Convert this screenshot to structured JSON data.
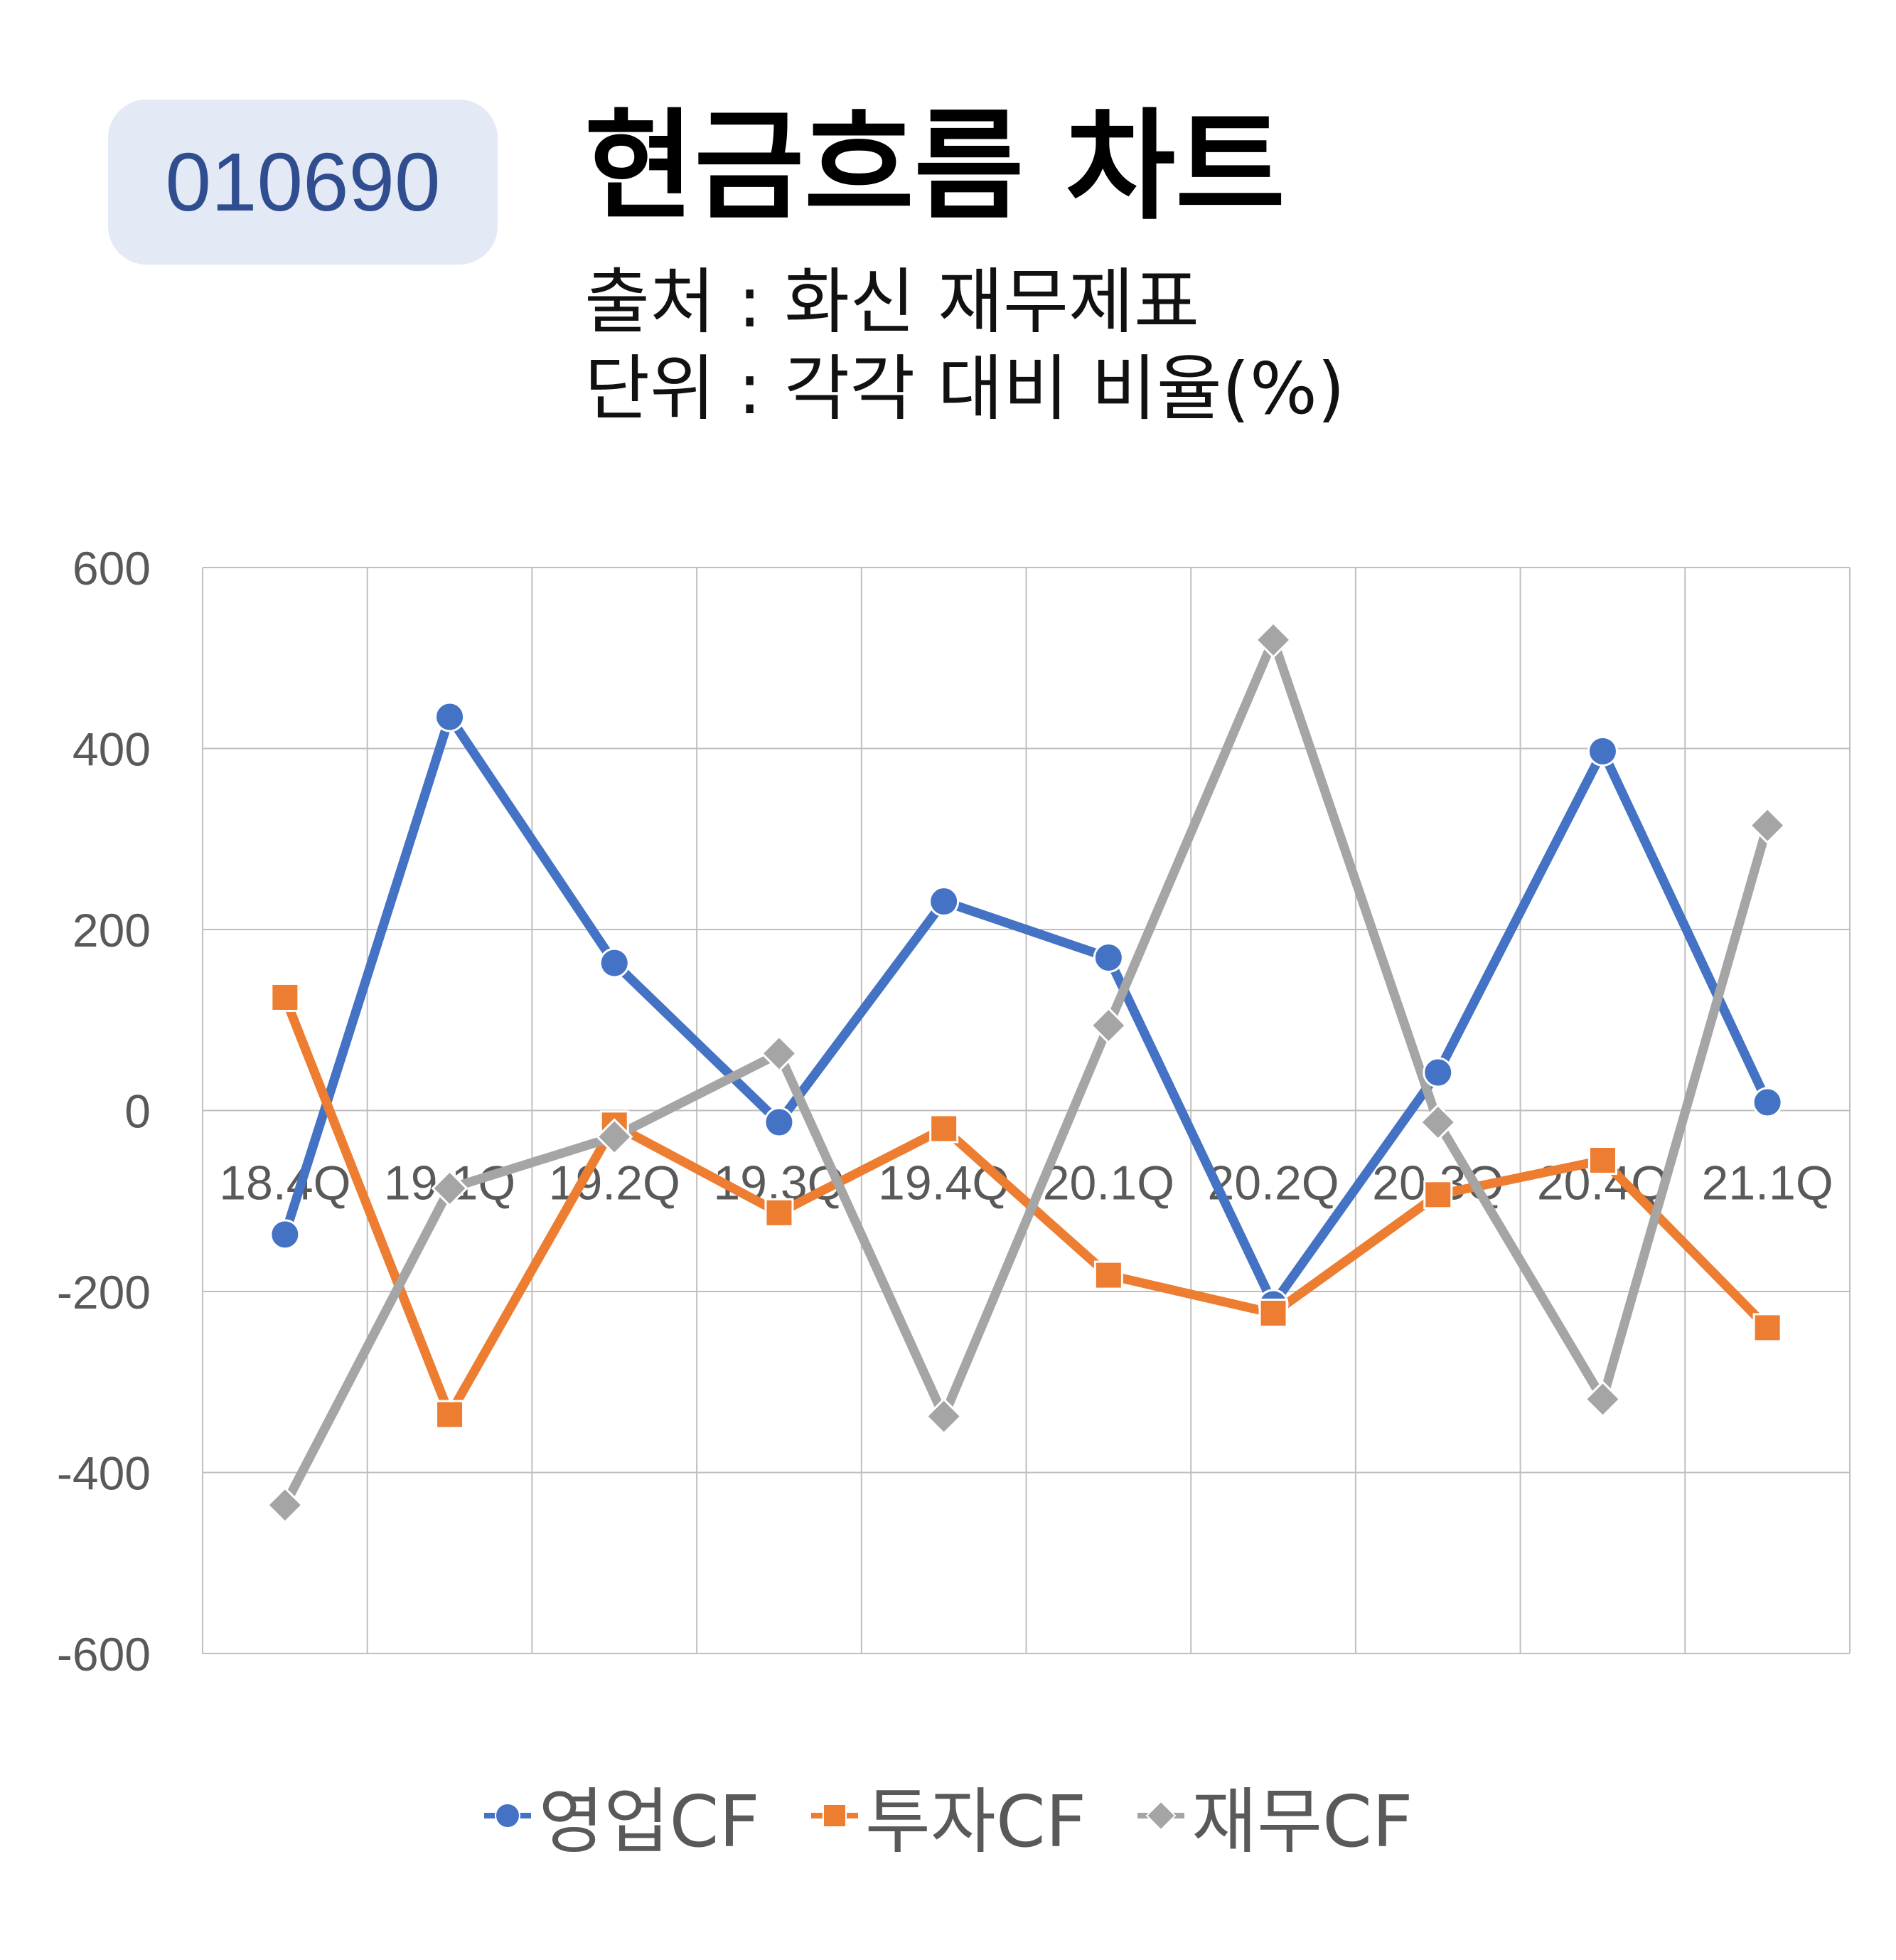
{
  "header": {
    "code": "010690",
    "title": "현금흐름 차트",
    "source": "출처 : 화신 재무제표",
    "unit": "단위 : 각각 대비 비율(%)"
  },
  "colors": {
    "operating": "#4472c4",
    "investing": "#ed7d31",
    "financing": "#a5a5a5",
    "grid": "#bfbfbf",
    "tick_text": "#595959"
  },
  "chart_data": {
    "type": "line",
    "categories": [
      "18.4Q",
      "19.1Q",
      "19.2Q",
      "19.3Q",
      "19.4Q",
      "20.1Q",
      "20.2Q",
      "20.3Q",
      "20.4Q",
      "21.1Q"
    ],
    "ylim": [
      -600,
      600
    ],
    "yticks": [
      "600",
      "400",
      "200",
      "0",
      "-200",
      "-400",
      "-600"
    ],
    "grid": true,
    "legend_position": "bottom",
    "series": [
      {
        "name": "영업CF",
        "marker": "circle",
        "color": "#4472c4",
        "values": [
          -137,
          435,
          163,
          -13,
          231,
          169,
          -214,
          42,
          397,
          9
        ]
      },
      {
        "name": "투자CF",
        "marker": "square",
        "color": "#ed7d31",
        "values": [
          125,
          -336,
          -16,
          -113,
          -20,
          -182,
          -224,
          -93,
          -55,
          -240
        ]
      },
      {
        "name": "재무CF",
        "marker": "diamond",
        "color": "#a5a5a5",
        "values": [
          -436,
          -86,
          -29,
          63,
          -338,
          94,
          520,
          -13,
          -319,
          315
        ]
      }
    ]
  }
}
